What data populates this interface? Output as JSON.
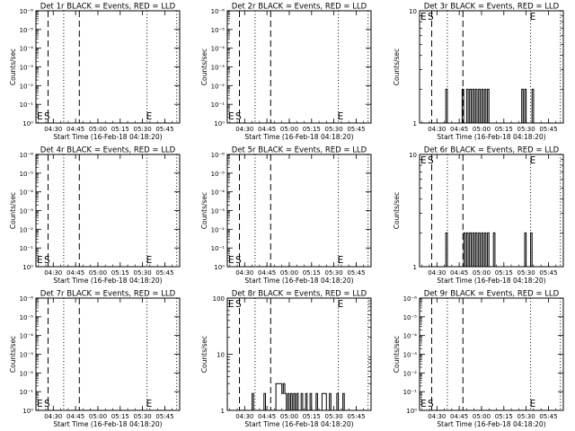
{
  "figure": {
    "xlabel": "Start Time (16-Feb-18 04:18:20)",
    "ylabel": "Counts/sec",
    "x_tick_labels": [
      "04:30",
      "04:45",
      "05:00",
      "05:15",
      "05:30",
      "05:45"
    ],
    "marker_labels": [
      "E",
      "S",
      "E"
    ]
  },
  "chart_data": [
    {
      "type": "line",
      "title": "Det 1r BLACK = Events, RED = LLD",
      "yscale": "log",
      "xlim": [
        "04:18:20",
        "05:55"
      ],
      "y_tick_labels": [
        "10⁰",
        "10⁻¹",
        "10⁻²",
        "10⁻³",
        "10⁻⁴",
        "10⁻⁵",
        "10⁻⁶"
      ],
      "x_tick_labels": [
        "04:30",
        "04:45",
        "05:00",
        "05:15",
        "05:30",
        "05:45"
      ],
      "xlabel": "Start Time (16-Feb-18 04:18:20)",
      "ylabel": "Counts/sec",
      "series": []
    },
    {
      "type": "line",
      "title": "Det 2r BLACK = Events, RED = LLD",
      "yscale": "log",
      "xlim": [
        "04:18:20",
        "05:55"
      ],
      "y_tick_labels": [
        "10⁰",
        "10⁻¹",
        "10⁻²",
        "10⁻³",
        "10⁻⁴",
        "10⁻⁵",
        "10⁻⁶"
      ],
      "x_tick_labels": [
        "04:30",
        "04:45",
        "05:00",
        "05:15",
        "05:30",
        "05:45"
      ],
      "xlabel": "Start Time (16-Feb-18 04:18:20)",
      "ylabel": "Counts/sec",
      "series": []
    },
    {
      "type": "line",
      "title": "Det 3r BLACK = Events, RED = LLD",
      "yscale": "log",
      "xlim": [
        "04:18:20",
        "05:55"
      ],
      "ylim": [
        1,
        10
      ],
      "y_tick_labels": [
        "1",
        "10"
      ],
      "x_tick_labels": [
        "04:30",
        "04:45",
        "05:00",
        "05:15",
        "05:30",
        "05:45"
      ],
      "xlabel": "Start Time (16-Feb-18 04:18:20)",
      "ylabel": "Counts/sec",
      "series": [
        {
          "values": [
            [
              "04:36",
              2
            ],
            [
              "04:37",
              1
            ],
            [
              "04:47",
              2
            ],
            [
              "04:48",
              1
            ],
            [
              "04:50",
              2
            ],
            [
              "04:51",
              1
            ],
            [
              "04:52",
              2
            ],
            [
              "04:53",
              1
            ],
            [
              "04:54",
              2
            ],
            [
              "04:55",
              1
            ],
            [
              "04:56",
              2
            ],
            [
              "04:57",
              1
            ],
            [
              "04:58",
              2
            ],
            [
              "04:59",
              1
            ],
            [
              "05:00",
              2
            ],
            [
              "05:01",
              1
            ],
            [
              "05:02",
              2
            ],
            [
              "05:03",
              1
            ],
            [
              "05:04",
              2
            ],
            [
              "05:05",
              1
            ],
            [
              "05:27",
              2
            ],
            [
              "05:28",
              1
            ],
            [
              "05:29",
              2
            ],
            [
              "05:30",
              1
            ],
            [
              "05:34",
              2
            ],
            [
              "05:35",
              1
            ]
          ]
        }
      ]
    },
    {
      "type": "line",
      "title": "Det 4r BLACK = Events, RED = LLD",
      "yscale": "log",
      "xlim": [
        "04:18:20",
        "05:55"
      ],
      "y_tick_labels": [
        "10⁰",
        "10⁻¹",
        "10⁻²",
        "10⁻³",
        "10⁻⁴",
        "10⁻⁵",
        "10⁻⁶"
      ],
      "x_tick_labels": [
        "04:30",
        "04:45",
        "05:00",
        "05:15",
        "05:30",
        "05:45"
      ],
      "xlabel": "Start Time (16-Feb-18 04:18:20)",
      "ylabel": "Counts/sec",
      "series": []
    },
    {
      "type": "line",
      "title": "Det 5r BLACK = Events, RED = LLD",
      "yscale": "log",
      "xlim": [
        "04:18:20",
        "05:55"
      ],
      "y_tick_labels": [
        "10⁰",
        "10⁻¹",
        "10⁻²",
        "10⁻³",
        "10⁻⁴",
        "10⁻⁵",
        "10⁻⁶"
      ],
      "x_tick_labels": [
        "04:30",
        "04:45",
        "05:00",
        "05:15",
        "05:30",
        "05:45"
      ],
      "xlabel": "Start Time (16-Feb-18 04:18:20)",
      "ylabel": "Counts/sec",
      "series": []
    },
    {
      "type": "line",
      "title": "Det 6r BLACK = Events, RED = LLD",
      "yscale": "log",
      "xlim": [
        "04:18:20",
        "05:55"
      ],
      "ylim": [
        1,
        10
      ],
      "y_tick_labels": [
        "1",
        "10"
      ],
      "x_tick_labels": [
        "04:30",
        "04:45",
        "05:00",
        "05:15",
        "05:30",
        "05:45"
      ],
      "xlabel": "Start Time (16-Feb-18 04:18:20)",
      "ylabel": "Counts/sec",
      "series": [
        {
          "values": [
            [
              "04:36",
              2
            ],
            [
              "04:37",
              1
            ],
            [
              "04:48",
              2
            ],
            [
              "04:49",
              1
            ],
            [
              "04:50",
              2
            ],
            [
              "04:51",
              1
            ],
            [
              "04:52",
              2
            ],
            [
              "04:53",
              1
            ],
            [
              "04:54",
              2
            ],
            [
              "04:55",
              1
            ],
            [
              "04:56",
              2
            ],
            [
              "04:57",
              1
            ],
            [
              "04:58",
              2
            ],
            [
              "04:59",
              1
            ],
            [
              "05:00",
              2
            ],
            [
              "05:01",
              1
            ],
            [
              "05:02",
              2
            ],
            [
              "05:03",
              1
            ],
            [
              "05:04",
              2
            ],
            [
              "05:05",
              1
            ],
            [
              "05:08",
              2
            ],
            [
              "05:09",
              1
            ],
            [
              "05:29",
              2
            ],
            [
              "05:30",
              1
            ],
            [
              "05:33",
              2
            ],
            [
              "05:34",
              1
            ]
          ]
        }
      ]
    },
    {
      "type": "line",
      "title": "Det 7r BLACK = Events, RED = LLD",
      "yscale": "log",
      "xlim": [
        "04:18:20",
        "05:55"
      ],
      "y_tick_labels": [
        "10⁰",
        "10⁻¹",
        "10⁻²",
        "10⁻³",
        "10⁻⁴",
        "10⁻⁵",
        "10⁻⁶"
      ],
      "x_tick_labels": [
        "04:30",
        "04:45",
        "05:00",
        "05:15",
        "05:30",
        "05:45"
      ],
      "xlabel": "Start Time (16-Feb-18 04:18:20)",
      "ylabel": "Counts/sec",
      "series": []
    },
    {
      "type": "line",
      "title": "Det 8r BLACK = Events, RED = LLD",
      "yscale": "log",
      "xlim": [
        "04:18:20",
        "05:55"
      ],
      "ylim": [
        1,
        100
      ],
      "y_tick_labels": [
        "1",
        "10",
        "100"
      ],
      "x_tick_labels": [
        "04:30",
        "04:45",
        "05:00",
        "05:15",
        "05:30",
        "05:45"
      ],
      "xlabel": "Start Time (16-Feb-18 04:18:20)",
      "ylabel": "Counts/sec",
      "series": [
        {
          "values": [
            [
              "04:35",
              2
            ],
            [
              "04:36",
              1
            ],
            [
              "04:43",
              2
            ],
            [
              "04:44",
              1
            ],
            [
              "04:51",
              3
            ],
            [
              "04:55",
              2
            ],
            [
              "04:56",
              3
            ],
            [
              "04:57",
              2
            ],
            [
              "04:58",
              1
            ],
            [
              "04:59",
              2
            ],
            [
              "05:00",
              1
            ],
            [
              "05:01",
              2
            ],
            [
              "05:02",
              1
            ],
            [
              "05:03",
              2
            ],
            [
              "05:04",
              1
            ],
            [
              "05:05",
              2
            ],
            [
              "05:06",
              1
            ],
            [
              "05:08",
              2
            ],
            [
              "05:09",
              1
            ],
            [
              "05:11",
              2
            ],
            [
              "05:12",
              1
            ],
            [
              "05:14",
              2
            ],
            [
              "05:15",
              1
            ],
            [
              "05:18",
              2
            ],
            [
              "05:19",
              1
            ],
            [
              "05:22",
              2
            ],
            [
              "05:25",
              1
            ],
            [
              "05:27",
              2
            ],
            [
              "05:28",
              1
            ],
            [
              "05:32",
              2
            ],
            [
              "05:33",
              1
            ],
            [
              "05:36",
              2
            ],
            [
              "05:37",
              1
            ]
          ]
        }
      ]
    },
    {
      "type": "line",
      "title": "Det 9r BLACK = Events, RED = LLD",
      "yscale": "log",
      "xlim": [
        "04:18:20",
        "05:55"
      ],
      "y_tick_labels": [
        "10⁰",
        "10⁻¹",
        "10⁻²",
        "10⁻³",
        "10⁻⁴",
        "10⁻⁵",
        "10⁻⁶"
      ],
      "x_tick_labels": [
        "04:30",
        "04:45",
        "05:00",
        "05:15",
        "05:30",
        "05:45"
      ],
      "xlabel": "Start Time (16-Feb-18 04:18:20)",
      "ylabel": "Counts/sec",
      "series": []
    }
  ]
}
